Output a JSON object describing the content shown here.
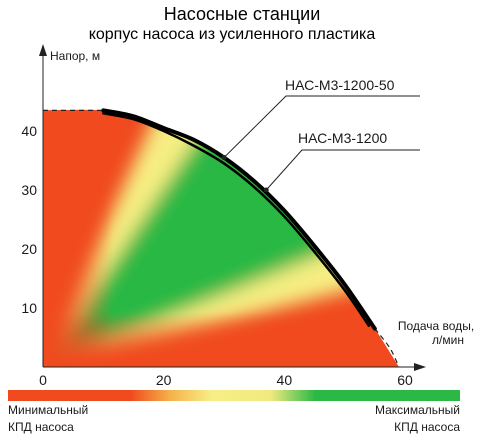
{
  "chart_data": {
    "type": "line",
    "title": "Насосные станции",
    "subtitle": "корпус насоса из усиленного пластика",
    "ylabel": "Напор, м",
    "xlabel": [
      "Подача воды,",
      "л/мин"
    ],
    "xlim": [
      0,
      60
    ],
    "ylim": [
      0,
      47
    ],
    "xticks": [
      0,
      20,
      40,
      60
    ],
    "yticks": [
      10,
      20,
      30,
      40
    ],
    "series": [
      {
        "name": "НАС-М3-1200-50",
        "color": "#000000",
        "x": [
          10,
          15,
          20,
          25,
          30,
          35,
          40,
          45,
          50,
          55
        ],
        "y": [
          43.5,
          42.5,
          40.5,
          38.5,
          35.5,
          31.5,
          26.5,
          20.5,
          14,
          6.5
        ]
      },
      {
        "name": "НАС-М3-1200",
        "color": "#000000",
        "x": [
          10,
          15,
          20,
          25,
          30,
          35,
          40,
          45,
          50,
          54
        ],
        "y": [
          43,
          42,
          40,
          37.5,
          34.5,
          30.5,
          25.5,
          19.5,
          13,
          7
        ]
      }
    ],
    "extrapolated_start": {
      "x": [
        0,
        10
      ],
      "y": [
        43.5,
        43.5
      ]
    },
    "extrapolated_end": {
      "x": [
        55,
        59
      ],
      "y": [
        6.5,
        0
      ]
    },
    "efficiency_colors": {
      "min": "#f04a1e",
      "mid": "#f6ee82",
      "max": "#2bb845"
    }
  },
  "legend": {
    "min_label": [
      "Минимальный",
      "КПД насоса"
    ],
    "max_label": [
      "Максимальный",
      "КПД насоса"
    ]
  }
}
